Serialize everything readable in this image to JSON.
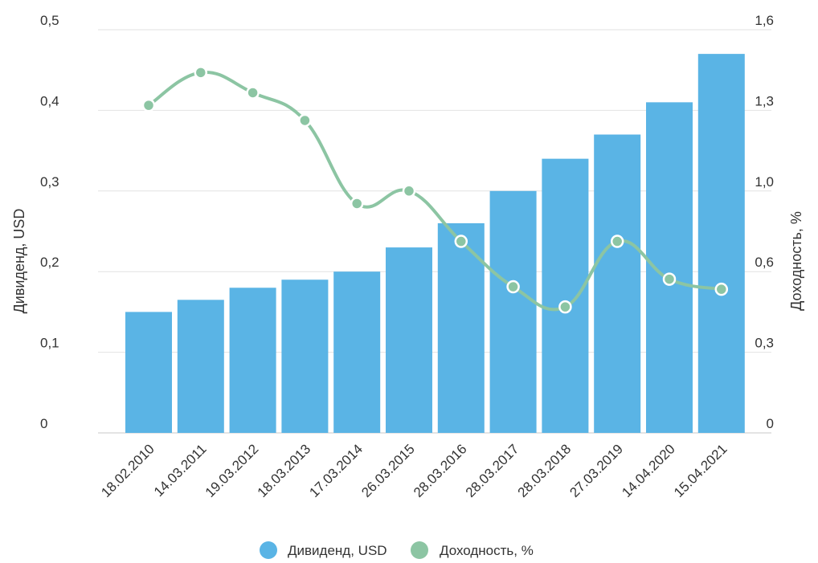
{
  "chart_data": {
    "type": "bar",
    "categories": [
      "18.02.2010",
      "14.03.2011",
      "19.03.2012",
      "18.03.2013",
      "17.03.2014",
      "26.03.2015",
      "28.03.2016",
      "28.03.2017",
      "28.03.2018",
      "27.03.2019",
      "14.04.2020",
      "15.04.2021"
    ],
    "series": [
      {
        "name": "Дивиденд, USD",
        "type": "bar",
        "axis": "left",
        "color": "#5ab4e5",
        "values": [
          0.15,
          0.165,
          0.18,
          0.19,
          0.2,
          0.23,
          0.26,
          0.3,
          0.34,
          0.37,
          0.41,
          0.47
        ]
      },
      {
        "name": "Доходность, %",
        "type": "line",
        "axis": "right",
        "color": "#8cc5a3",
        "values": [
          1.3,
          1.43,
          1.35,
          1.24,
          0.91,
          0.96,
          0.76,
          0.58,
          0.5,
          0.76,
          0.61,
          0.57
        ]
      }
    ],
    "ylabel": "Дивиденд, USD",
    "y2label": "Доходность, %",
    "ylim": [
      0,
      0.5
    ],
    "y2lim": [
      0,
      1.6
    ],
    "yticks": [
      "0",
      "0,1",
      "0,2",
      "0,3",
      "0,4",
      "0,5"
    ],
    "y2ticks": [
      "0",
      "0,3",
      "0,6",
      "1,0",
      "1,3",
      "1,6"
    ],
    "grid": true,
    "legend": "bottom-center"
  }
}
